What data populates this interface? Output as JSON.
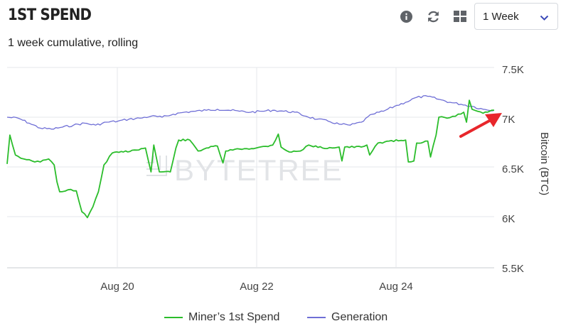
{
  "header": {
    "title": "1ST SPEND",
    "subtitle": "1 week cumulative, rolling",
    "period_select": {
      "value": "1 Week"
    }
  },
  "icons": {
    "info": "info-circle-icon",
    "refresh": "refresh-icon",
    "layout": "grid-layout-icon",
    "dropdown": "chevron-down-icon",
    "annotation": "red-arrow-annotation"
  },
  "colors": {
    "miners": "#2bbd2b",
    "generation": "#6f6fd6",
    "arrow": "#e8262b",
    "grid": "#e4e7eb"
  },
  "watermark": "BYTETREE",
  "chart_data": {
    "type": "line",
    "title": "1ST SPEND",
    "subtitle": "1 week cumulative, rolling",
    "xlabel": "",
    "ylabel": "Bitcoin (BTC)",
    "x_range": [
      "Aug 18 12:00",
      "Aug 25 20:00"
    ],
    "x_ticks": [
      "Aug 20",
      "Aug 22",
      "Aug 24"
    ],
    "ylim": [
      5500,
      7500
    ],
    "y_ticks": [
      5500,
      6000,
      6500,
      7000,
      7500
    ],
    "y_tick_labels": [
      "5.5K",
      "6K",
      "6.5K",
      "7K",
      "7.5K"
    ],
    "grid": true,
    "legend": "bottom-center",
    "series": [
      {
        "name": "Miner’s 1st Spend",
        "color": "#2bbd2b",
        "points": [
          [
            "Aug 18 12:00",
            6530
          ],
          [
            "Aug 18 13:00",
            6820
          ],
          [
            "Aug 18 15:00",
            6620
          ],
          [
            "Aug 18 18:00",
            6580
          ],
          [
            "Aug 18 21:00",
            6560
          ],
          [
            "Aug 19 00:00",
            6550
          ],
          [
            "Aug 19 03:00",
            6580
          ],
          [
            "Aug 19 05:00",
            6520
          ],
          [
            "Aug 19 06:00",
            6350
          ],
          [
            "Aug 19 07:00",
            6250
          ],
          [
            "Aug 19 10:00",
            6270
          ],
          [
            "Aug 19 13:00",
            6260
          ],
          [
            "Aug 19 15:00",
            6050
          ],
          [
            "Aug 19 17:00",
            5990
          ],
          [
            "Aug 19 19:00",
            6100
          ],
          [
            "Aug 19 21:00",
            6250
          ],
          [
            "Aug 19 23:00",
            6520
          ],
          [
            "Aug 20 02:00",
            6640
          ],
          [
            "Aug 20 06:00",
            6650
          ],
          [
            "Aug 20 10:00",
            6670
          ],
          [
            "Aug 20 14:00",
            6690
          ],
          [
            "Aug 20 16:00",
            6450
          ],
          [
            "Aug 20 17:00",
            6720
          ],
          [
            "Aug 20 19:00",
            6450
          ],
          [
            "Aug 20 23:00",
            6450
          ],
          [
            "Aug 21 01:00",
            6690
          ],
          [
            "Aug 21 02:00",
            6770
          ],
          [
            "Aug 21 06:00",
            6770
          ],
          [
            "Aug 21 09:00",
            6660
          ],
          [
            "Aug 21 12:00",
            6690
          ],
          [
            "Aug 21 16:00",
            6710
          ],
          [
            "Aug 21 18:00",
            6540
          ],
          [
            "Aug 21 19:00",
            6660
          ],
          [
            "Aug 22 00:00",
            6680
          ],
          [
            "Aug 22 06:00",
            6690
          ],
          [
            "Aug 22 12:00",
            6720
          ],
          [
            "Aug 22 14:00",
            6830
          ],
          [
            "Aug 22 15:00",
            6700
          ],
          [
            "Aug 22 18:00",
            6650
          ],
          [
            "Aug 22 22:00",
            6660
          ],
          [
            "Aug 23 01:00",
            6720
          ],
          [
            "Aug 23 06:00",
            6690
          ],
          [
            "Aug 23 12:00",
            6700
          ],
          [
            "Aug 23 13:00",
            6560
          ],
          [
            "Aug 23 14:00",
            6700
          ],
          [
            "Aug 23 20:00",
            6700
          ],
          [
            "Aug 23 22:00",
            6720
          ],
          [
            "Aug 23 23:00",
            6620
          ],
          [
            "Aug 24 02:00",
            6740
          ],
          [
            "Aug 24 06:00",
            6760
          ],
          [
            "Aug 24 12:00",
            6770
          ],
          [
            "Aug 24 13:00",
            6550
          ],
          [
            "Aug 24 15:00",
            6560
          ],
          [
            "Aug 24 16:00",
            6740
          ],
          [
            "Aug 24 20:00",
            6760
          ],
          [
            "Aug 24 21:00",
            6600
          ],
          [
            "Aug 24 23:00",
            6820
          ],
          [
            "Aug 25 00:00",
            7000
          ],
          [
            "Aug 25 03:00",
            6990
          ],
          [
            "Aug 25 06:00",
            7010
          ],
          [
            "Aug 25 09:00",
            7050
          ],
          [
            "Aug 25 10:00",
            6950
          ],
          [
            "Aug 25 11:00",
            7170
          ],
          [
            "Aug 25 12:00",
            7080
          ],
          [
            "Aug 25 14:00",
            7060
          ],
          [
            "Aug 25 16:00",
            7040
          ],
          [
            "Aug 25 20:00",
            7070
          ]
        ]
      },
      {
        "name": "Generation",
        "color": "#6f6fd6",
        "points": [
          [
            "Aug 18 12:00",
            7000
          ],
          [
            "Aug 18 16:00",
            6990
          ],
          [
            "Aug 18 20:00",
            6940
          ],
          [
            "Aug 19 00:00",
            6890
          ],
          [
            "Aug 19 04:00",
            6880
          ],
          [
            "Aug 19 08:00",
            6900
          ],
          [
            "Aug 19 12:00",
            6920
          ],
          [
            "Aug 19 16:00",
            6940
          ],
          [
            "Aug 19 20:00",
            6920
          ],
          [
            "Aug 20 00:00",
            6950
          ],
          [
            "Aug 20 04:00",
            6960
          ],
          [
            "Aug 20 08:00",
            6980
          ],
          [
            "Aug 20 12:00",
            6990
          ],
          [
            "Aug 20 16:00",
            7010
          ],
          [
            "Aug 20 20:00",
            7000
          ],
          [
            "Aug 21 00:00",
            7030
          ],
          [
            "Aug 21 04:00",
            7050
          ],
          [
            "Aug 21 08:00",
            7060
          ],
          [
            "Aug 21 12:00",
            7070
          ],
          [
            "Aug 21 16:00",
            7080
          ],
          [
            "Aug 21 20:00",
            7070
          ],
          [
            "Aug 22 00:00",
            7060
          ],
          [
            "Aug 22 04:00",
            7050
          ],
          [
            "Aug 22 08:00",
            7060
          ],
          [
            "Aug 22 12:00",
            7070
          ],
          [
            "Aug 22 16:00",
            7060
          ],
          [
            "Aug 22 20:00",
            7050
          ],
          [
            "Aug 23 00:00",
            7010
          ],
          [
            "Aug 23 04:00",
            6980
          ],
          [
            "Aug 23 08:00",
            6960
          ],
          [
            "Aug 23 12:00",
            6930
          ],
          [
            "Aug 23 16:00",
            6920
          ],
          [
            "Aug 23 20:00",
            6950
          ],
          [
            "Aug 24 00:00",
            7030
          ],
          [
            "Aug 24 04:00",
            7060
          ],
          [
            "Aug 24 08:00",
            7110
          ],
          [
            "Aug 24 12:00",
            7150
          ],
          [
            "Aug 24 16:00",
            7200
          ],
          [
            "Aug 24 20:00",
            7210
          ],
          [
            "Aug 25 00:00",
            7180
          ],
          [
            "Aug 25 04:00",
            7150
          ],
          [
            "Aug 25 08:00",
            7130
          ],
          [
            "Aug 25 12:00",
            7110
          ],
          [
            "Aug 25 16:00",
            7080
          ],
          [
            "Aug 25 20:00",
            7070
          ]
        ]
      }
    ]
  }
}
